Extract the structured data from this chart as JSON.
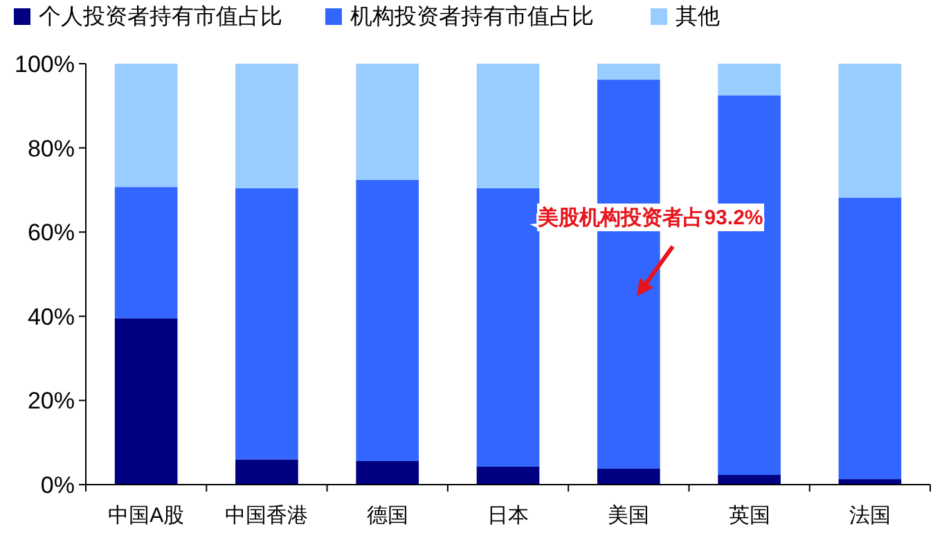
{
  "chart_data": {
    "type": "bar",
    "stacked": true,
    "categories": [
      "中国A股",
      "中国香港",
      "德国",
      "日本",
      "美国",
      "英国",
      "法国"
    ],
    "series": [
      {
        "name": "个人投资者持有市值占比",
        "color": "#000080",
        "values": [
          39.5,
          6,
          5.6,
          4.3,
          3.8,
          2.3,
          1.3
        ]
      },
      {
        "name": "机构投资者持有市值占比",
        "color": "#3366ff",
        "values": [
          31.2,
          64.4,
          66.8,
          66.1,
          92.4,
          90.2,
          66.9
        ]
      },
      {
        "name": "其他",
        "color": "#99ccff",
        "values": [
          29.3,
          29.6,
          27.6,
          29.6,
          3.8,
          7.5,
          31.8
        ]
      }
    ],
    "ylim": [
      0,
      100
    ],
    "yticks": [
      {
        "value": 0,
        "label": "0%"
      },
      {
        "value": 20,
        "label": "20%"
      },
      {
        "value": 40,
        "label": "40%"
      },
      {
        "value": 60,
        "label": "60%"
      },
      {
        "value": 80,
        "label": "80%"
      },
      {
        "value": 100,
        "label": "100%"
      }
    ],
    "legend": "top",
    "annotations": [
      "美股机构投资者占93.2%"
    ]
  }
}
